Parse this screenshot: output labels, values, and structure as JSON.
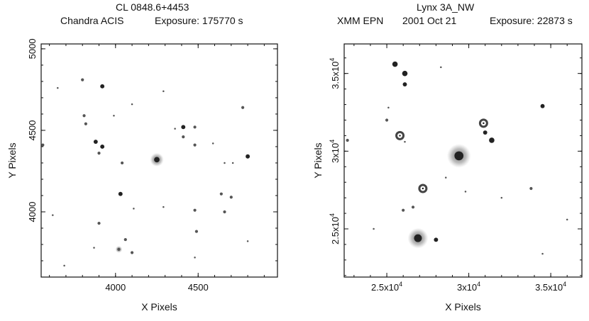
{
  "panels": [
    {
      "title_line1": "CL 0848.6+4453",
      "title_instrument": "Chandra ACIS",
      "title_date": "",
      "title_exposure": "Exposure: 175770 s"
    },
    {
      "title_line1": "Lynx 3A_NW",
      "title_instrument": "XMM EPN",
      "title_date": "2001 Oct 21",
      "title_exposure": "Exposure: 22873 s"
    }
  ],
  "colors": {
    "frame": "#111111",
    "source": "#222222",
    "halo": "#9a9a9a"
  },
  "chart_data": [
    {
      "type": "scatter",
      "title": "CL 0848.6+4453",
      "xlabel": "X Pixels",
      "ylabel": "Y Pixels",
      "xlim": [
        3550,
        4980
      ],
      "ylim": [
        3600,
        5030
      ],
      "xticks": [
        4000,
        4500
      ],
      "xtick_labels": [
        "4000",
        "4500"
      ],
      "yticks": [
        4000,
        4500,
        5000
      ],
      "ytick_labels": [
        "4000",
        "4500",
        "5000"
      ],
      "grid": false,
      "legend": "none",
      "points": [
        {
          "x": 3560,
          "y": 4410,
          "s": 2
        },
        {
          "x": 3620,
          "y": 3980,
          "s": 1
        },
        {
          "x": 3650,
          "y": 4760,
          "s": 1
        },
        {
          "x": 3690,
          "y": 3670,
          "s": 1
        },
        {
          "x": 3800,
          "y": 4810,
          "s": 2
        },
        {
          "x": 3810,
          "y": 4590,
          "s": 2
        },
        {
          "x": 3820,
          "y": 4540,
          "s": 2
        },
        {
          "x": 3920,
          "y": 4770,
          "s": 3
        },
        {
          "x": 3880,
          "y": 4430,
          "s": 3
        },
        {
          "x": 3920,
          "y": 4400,
          "s": 3
        },
        {
          "x": 3900,
          "y": 4360,
          "s": 2
        },
        {
          "x": 3900,
          "y": 3930,
          "s": 2
        },
        {
          "x": 3870,
          "y": 3780,
          "s": 1
        },
        {
          "x": 3990,
          "y": 4590,
          "s": 1
        },
        {
          "x": 4040,
          "y": 4300,
          "s": 2
        },
        {
          "x": 4030,
          "y": 4110,
          "s": 3
        },
        {
          "x": 4060,
          "y": 3830,
          "s": 2
        },
        {
          "x": 4020,
          "y": 3770,
          "s": 2,
          "halo": true
        },
        {
          "x": 4100,
          "y": 3750,
          "s": 2
        },
        {
          "x": 4100,
          "y": 4660,
          "s": 1
        },
        {
          "x": 4110,
          "y": 4020,
          "s": 1
        },
        {
          "x": 4250,
          "y": 4320,
          "s": 4,
          "halo": true
        },
        {
          "x": 4290,
          "y": 4740,
          "s": 1
        },
        {
          "x": 4290,
          "y": 4030,
          "s": 1
        },
        {
          "x": 4360,
          "y": 4510,
          "s": 1
        },
        {
          "x": 4410,
          "y": 4520,
          "s": 3
        },
        {
          "x": 4410,
          "y": 4460,
          "s": 2
        },
        {
          "x": 4480,
          "y": 4520,
          "s": 2
        },
        {
          "x": 4480,
          "y": 4410,
          "s": 2
        },
        {
          "x": 4480,
          "y": 4010,
          "s": 2
        },
        {
          "x": 4490,
          "y": 3880,
          "s": 2
        },
        {
          "x": 4480,
          "y": 3720,
          "s": 1
        },
        {
          "x": 4590,
          "y": 4420,
          "s": 1
        },
        {
          "x": 4640,
          "y": 4110,
          "s": 2
        },
        {
          "x": 4660,
          "y": 4000,
          "s": 2
        },
        {
          "x": 4660,
          "y": 4300,
          "s": 1
        },
        {
          "x": 4700,
          "y": 4090,
          "s": 2
        },
        {
          "x": 4710,
          "y": 4300,
          "s": 1
        },
        {
          "x": 4770,
          "y": 4640,
          "s": 2
        },
        {
          "x": 4800,
          "y": 4340,
          "s": 3
        },
        {
          "x": 4800,
          "y": 3820,
          "s": 1
        }
      ]
    },
    {
      "type": "scatter",
      "title": "Lynx 3A_NW",
      "xlabel": "X Pixels",
      "ylabel": "Y Pixels",
      "xlim": [
        22400,
        36900
      ],
      "ylim": [
        21900,
        36900
      ],
      "xticks": [
        25000,
        30000,
        35000
      ],
      "xtick_labels": [
        "2.5x10",
        "3x10",
        "3.5x10"
      ],
      "yticks": [
        25000,
        30000,
        35000
      ],
      "ytick_labels": [
        "2.5x10",
        "3x10",
        "3.5x10"
      ],
      "tick_exponent": "4",
      "grid": false,
      "legend": "none",
      "points": [
        {
          "x": 22600,
          "y": 30700,
          "s": 2
        },
        {
          "x": 25000,
          "y": 32000,
          "s": 2
        },
        {
          "x": 25100,
          "y": 32800,
          "s": 1
        },
        {
          "x": 25500,
          "y": 35600,
          "s": 4
        },
        {
          "x": 26100,
          "y": 35000,
          "s": 4
        },
        {
          "x": 26100,
          "y": 34300,
          "s": 3
        },
        {
          "x": 25800,
          "y": 31000,
          "s": 5,
          "ring": true
        },
        {
          "x": 26100,
          "y": 30600,
          "s": 1
        },
        {
          "x": 27200,
          "y": 27600,
          "s": 5,
          "ring": true
        },
        {
          "x": 26000,
          "y": 26200,
          "s": 2
        },
        {
          "x": 26600,
          "y": 26400,
          "s": 2
        },
        {
          "x": 26900,
          "y": 24400,
          "s": 6,
          "halo": true
        },
        {
          "x": 28000,
          "y": 24300,
          "s": 3
        },
        {
          "x": 28300,
          "y": 35400,
          "s": 1
        },
        {
          "x": 29400,
          "y": 29700,
          "s": 7,
          "halo": true
        },
        {
          "x": 28600,
          "y": 28300,
          "s": 1
        },
        {
          "x": 30900,
          "y": 31800,
          "s": 5,
          "ring": true
        },
        {
          "x": 31000,
          "y": 31200,
          "s": 3
        },
        {
          "x": 31400,
          "y": 30700,
          "s": 4
        },
        {
          "x": 33800,
          "y": 27600,
          "s": 2
        },
        {
          "x": 34500,
          "y": 32900,
          "s": 3
        },
        {
          "x": 32000,
          "y": 27000,
          "s": 1
        },
        {
          "x": 29800,
          "y": 27400,
          "s": 1
        },
        {
          "x": 34500,
          "y": 23400,
          "s": 1
        },
        {
          "x": 36000,
          "y": 25600,
          "s": 1
        },
        {
          "x": 24200,
          "y": 25000,
          "s": 1
        }
      ]
    }
  ]
}
